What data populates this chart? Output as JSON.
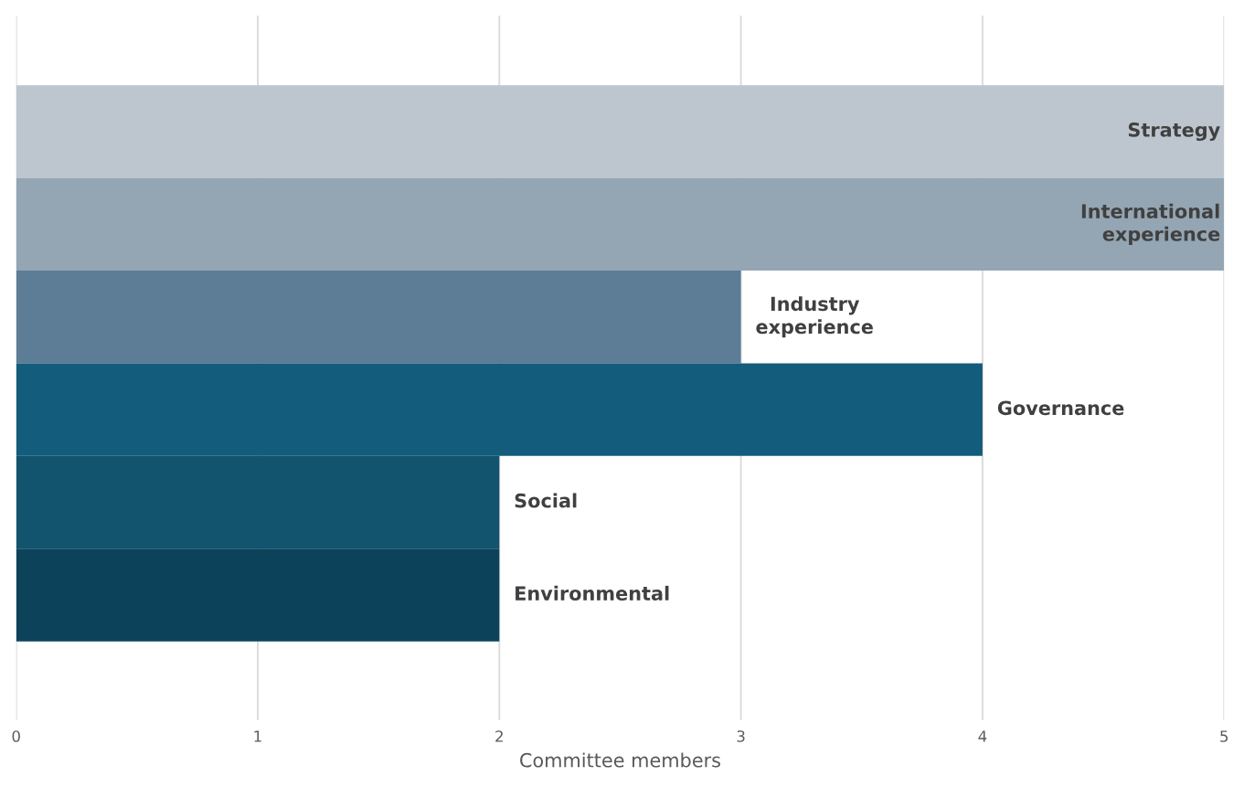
{
  "chart_data": {
    "type": "bar",
    "orientation": "horizontal",
    "xlabel": "Committee members",
    "categories": [
      "Strategy",
      "International\nexperience",
      "Industry\nexperience",
      "Governance",
      "Social",
      "Environmental"
    ],
    "values": [
      5,
      5,
      3,
      4,
      2,
      2
    ],
    "colors": [
      "#bdc5ce",
      "#94a5b3",
      "#5d7d96",
      "#135c7b",
      "#12536e",
      "#0d425b"
    ],
    "xlim": [
      0,
      5
    ],
    "xticks": [
      0,
      1,
      2,
      3,
      4,
      5
    ],
    "grid": "x",
    "tick_labels": "x"
  }
}
